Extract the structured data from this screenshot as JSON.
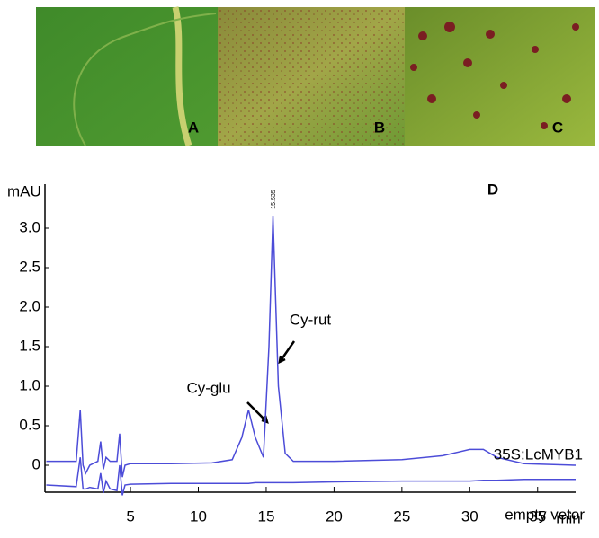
{
  "figure": {
    "panels": [
      "A",
      "B",
      "C"
    ]
  },
  "chart_data": {
    "type": "line",
    "panel": "D",
    "y_label": "mAU",
    "x_label": "min",
    "xlim": [
      -1.3,
      37.8
    ],
    "xticks": [
      5,
      10,
      15,
      20,
      25,
      30,
      35
    ],
    "ylim": [
      -0.35,
      3.5
    ],
    "yticks": [
      0,
      0.5,
      {
        "value": 1,
        "label": "1.0"
      },
      1.5,
      {
        "value": 2,
        "label": "2.0"
      },
      2.5,
      {
        "value": 3,
        "label": "3.0"
      }
    ],
    "grid": false,
    "peak_label": 15.535,
    "annotations": [
      "Cy-glu",
      "Cy-rut"
    ],
    "x": [
      -1.2,
      1.0,
      1.3,
      1.5,
      1.7,
      2.0,
      2.6,
      2.8,
      3.0,
      3.2,
      3.5,
      4.0,
      4.2,
      4.4,
      4.6,
      5,
      8,
      11,
      12.5,
      13.2,
      13.7,
      14.2,
      14.8,
      15.2,
      15.5,
      15.9,
      16.4,
      17,
      20,
      25,
      28,
      30,
      31,
      32,
      34,
      37.8
    ],
    "series": [
      {
        "name": "35S:LcMYB1",
        "color": "#4c4cd8",
        "values": [
          0.05,
          0.05,
          0.7,
          0.0,
          -0.1,
          0.0,
          0.05,
          0.3,
          -0.05,
          0.1,
          0.05,
          0.05,
          0.4,
          -0.15,
          0.0,
          0.02,
          0.02,
          0.03,
          0.07,
          0.35,
          0.7,
          0.35,
          0.1,
          1.5,
          3.15,
          1.0,
          0.15,
          0.05,
          0.05,
          0.07,
          0.12,
          0.2,
          0.2,
          0.1,
          0.02,
          0.0
        ]
      },
      {
        "name": "empty vetor",
        "color": "#4c4cd8",
        "values": [
          -0.25,
          -0.27,
          0.1,
          -0.3,
          -0.3,
          -0.28,
          -0.3,
          -0.1,
          -0.35,
          -0.2,
          -0.3,
          -0.32,
          0.0,
          -0.38,
          -0.25,
          -0.24,
          -0.23,
          -0.23,
          -0.23,
          -0.23,
          -0.23,
          -0.22,
          -0.22,
          -0.22,
          -0.22,
          -0.22,
          -0.22,
          -0.22,
          -0.21,
          -0.2,
          -0.2,
          -0.2,
          -0.19,
          -0.19,
          -0.18,
          -0.18
        ]
      }
    ]
  }
}
